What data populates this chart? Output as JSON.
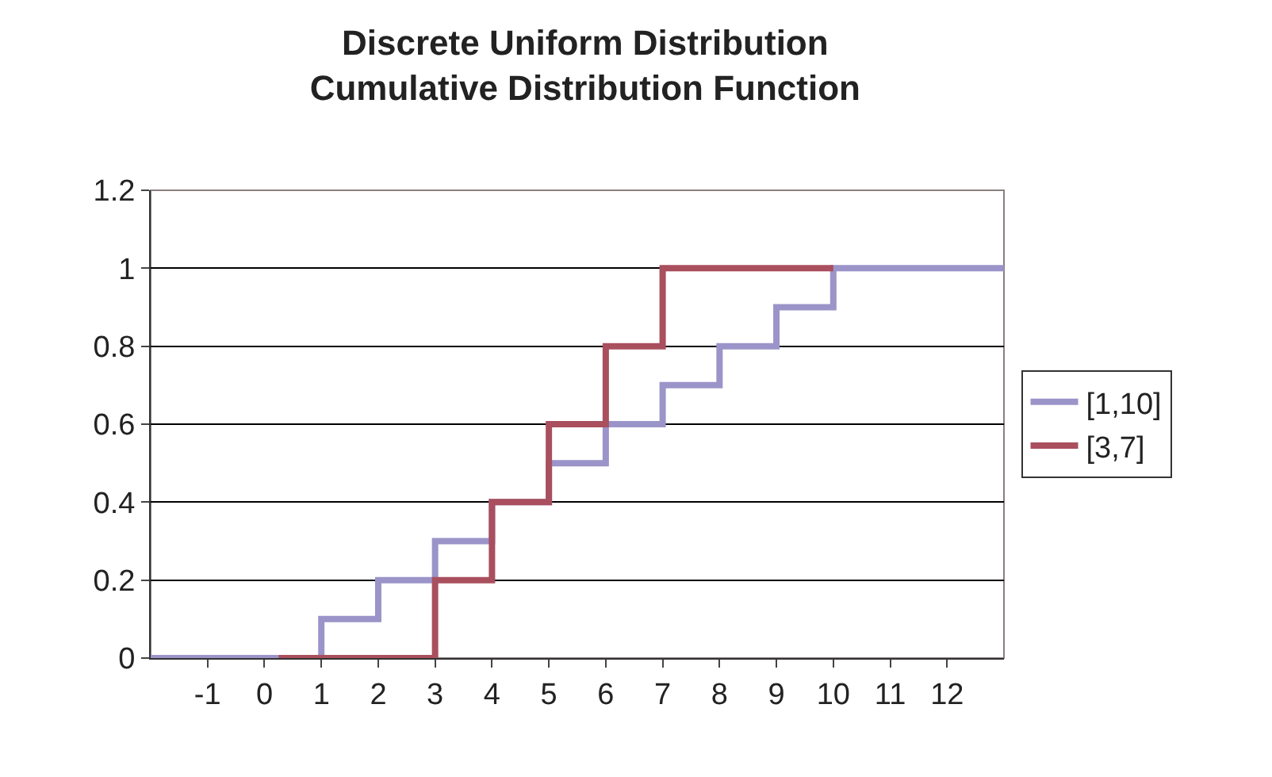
{
  "chart_data": {
    "type": "step",
    "title": "Discrete Uniform Distribution\nCumulative Distribution Function",
    "series": [
      {
        "name": "[1,10]",
        "color": "#9b94c9",
        "x": [
          -2,
          1,
          2,
          3,
          4,
          5,
          6,
          7,
          8,
          9,
          10,
          13
        ],
        "values": [
          0,
          0.1,
          0.2,
          0.3,
          0.4,
          0.5,
          0.6,
          0.7,
          0.8,
          0.9,
          1,
          1
        ]
      },
      {
        "name": "[3,7]",
        "color": "#a94f5e",
        "x": [
          0.25,
          3,
          4,
          5,
          6,
          7,
          10
        ],
        "values": [
          0,
          0.2,
          0.4,
          0.6,
          0.8,
          1,
          1
        ]
      }
    ],
    "xlim": [
      -2,
      13
    ],
    "xticks": [
      -1,
      0,
      1,
      2,
      3,
      4,
      5,
      6,
      7,
      8,
      9,
      10,
      11,
      12
    ],
    "ylim": [
      0,
      1.2
    ],
    "yticks": [
      0,
      0.2,
      0.4,
      0.6,
      0.8,
      1,
      1.2
    ],
    "grid": "y",
    "legend": "right",
    "marker": "none"
  }
}
